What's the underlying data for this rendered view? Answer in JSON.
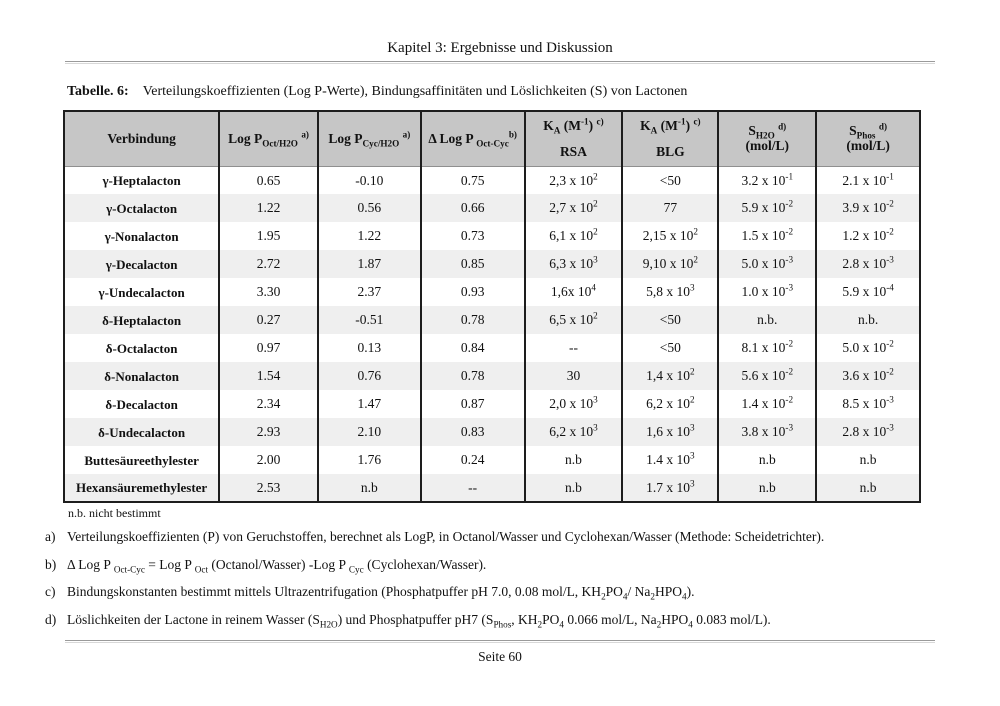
{
  "page": {
    "header": "Kapitel 3: Ergebnisse und Diskussion",
    "footer": "Seite 60"
  },
  "caption": {
    "label": "Tabelle. 6:",
    "text": "Verteilungskoeffizienten (Log P-Werte), Bindungsaffinitäten  und Löslichkeiten (S) von Lactonen"
  },
  "colors": {
    "table_header_bg": "#c6c6c6",
    "row_stripe_bg": "#efefef",
    "table_border": "#1d1d1d"
  },
  "table": {
    "columns": [
      {
        "id": "verbindung",
        "label": "Verbindung",
        "label2": "",
        "spread": false
      },
      {
        "id": "logp-oct-h2o",
        "label": "Log P_{Oct/H2O} ^{a)}",
        "label2": "",
        "spread": false
      },
      {
        "id": "logp-cyc-h2o",
        "label": "Log P_{Cyc/H2O} ^{a)}",
        "label2": "",
        "spread": false
      },
      {
        "id": "delta-logp-oct-cyc",
        "label": "Δ Log P _{Oct-Cyc}^{b)}",
        "label2": "",
        "spread": false
      },
      {
        "id": "ka-rsa",
        "label": "K_{A} (M^{-1}) ^{c)}",
        "label2": "RSA",
        "spread": true
      },
      {
        "id": "ka-blg",
        "label": "K_{A} (M^{-1}) ^{c)}",
        "label2": "BLG",
        "spread": true
      },
      {
        "id": "s-h2o",
        "label": "S_{H2O} ^{d)}",
        "label2": "(mol/L)",
        "spread": false
      },
      {
        "id": "s-phos",
        "label": "S_{Phos} ^{d)}",
        "label2": "(mol/L)",
        "spread": false
      }
    ],
    "rows": [
      {
        "name": "γ-Heptalacton",
        "values": [
          "0.65",
          "-0.10",
          "0.75",
          "2,3 x 10^{2}",
          "<50",
          "3.2 x 10^{-1}",
          "2.1 x 10^{-1}"
        ]
      },
      {
        "name": "γ-Octalacton",
        "values": [
          "1.22",
          "0.56",
          "0.66",
          "2,7 x 10^{2}",
          "77",
          "5.9 x 10^{-2}",
          "3.9 x 10^{-2}"
        ]
      },
      {
        "name": "γ-Nonalacton",
        "values": [
          "1.95",
          "1.22",
          "0.73",
          "6,1 x 10^{2}",
          "2,15 x 10^{2}",
          "1.5 x 10^{-2}",
          "1.2 x 10^{-2}"
        ]
      },
      {
        "name": "γ-Decalacton",
        "values": [
          "2.72",
          "1.87",
          "0.85",
          "6,3 x 10^{3}",
          "9,10 x 10^{2}",
          "5.0 x 10^{-3}",
          "2.8 x 10^{-3}"
        ]
      },
      {
        "name": "γ-Undecalacton",
        "values": [
          "3.30",
          "2.37",
          "0.93",
          "1,6x 10^{4}",
          "5,8 x 10^{3}",
          "1.0 x 10^{-3}",
          "5.9 x 10^{-4}"
        ]
      },
      {
        "name": "δ-Heptalacton",
        "values": [
          "0.27",
          "-0.51",
          "0.78",
          "6,5 x 10^{2}",
          "<50",
          "n.b.",
          "n.b."
        ]
      },
      {
        "name": "δ-Octalacton",
        "values": [
          "0.97",
          "0.13",
          "0.84",
          "--",
          "<50",
          "8.1 x 10^{-2}",
          "5.0 x 10^{-2}"
        ]
      },
      {
        "name": "δ-Nonalacton",
        "values": [
          "1.54",
          "0.76",
          "0.78",
          "30",
          "1,4 x 10^{2}",
          "5.6 x 10^{-2}",
          "3.6 x 10^{-2}"
        ]
      },
      {
        "name": "δ-Decalacton",
        "values": [
          "2.34",
          "1.47",
          "0.87",
          "2,0 x 10^{3}",
          "6,2 x 10^{2}",
          "1.4 x 10^{-2}",
          "8.5 x 10^{-3}"
        ]
      },
      {
        "name": "δ-Undecalacton",
        "values": [
          "2.93",
          "2.10",
          "0.83",
          "6,2 x 10^{3}",
          "1,6 x 10^{3}",
          "3.8 x 10^{-3}",
          "2.8 x 10^{-3}"
        ]
      },
      {
        "name": "Buttesäureethylester",
        "values": [
          "2.00",
          "1.76",
          "0.24",
          "n.b",
          "1.4 x 10^{3}",
          "n.b",
          "n.b"
        ]
      },
      {
        "name": "Hexansäuremethylester",
        "values": [
          "2.53",
          "n.b",
          "--",
          "n.b",
          "1.7 x 10^{3}",
          "n.b",
          "n.b"
        ]
      }
    ]
  },
  "notes": {
    "nb": "n.b.  nicht bestimmt",
    "items": [
      {
        "marker": "a)",
        "text": "Verteilungskoeffizienten (P) von Geruchstoffen, berechnet als LogP,  in Octanol/Wasser  und Cyclohexan/Wasser (Methode: Scheidetrichter)."
      },
      {
        "marker": "b)",
        "text": "Δ Log P _{Oct-Cyc} = Log P _{Oct} (Octanol/Wasser) -Log P _{Cyc} (Cyclohexan/Wasser)."
      },
      {
        "marker": "c)",
        "text": "Bindungskonstanten bestimmt mittels Ultrazentrifugation (Phosphatpuffer pH 7.0, 0.08 mol/L, KH_{2}PO_{4}/ Na_{2}HPO_{4})."
      },
      {
        "marker": "d)",
        "text": "Löslichkeiten der Lactone in reinem Wasser (S_{H2O}) und Phosphatpuffer pH7 (S_{Phos}, KH_{2}PO_{4} 0.066 mol/L, Na_{2}HPO_{4} 0.083 mol/L)."
      }
    ]
  }
}
